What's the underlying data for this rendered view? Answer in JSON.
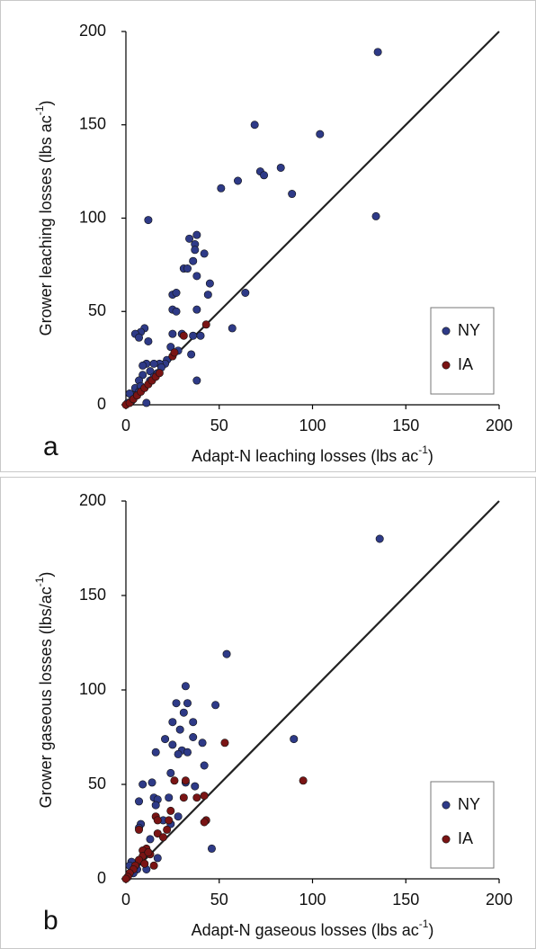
{
  "chart_data": [
    {
      "type": "scatter",
      "panel_label": "a",
      "x_label": "Adapt-N leaching losses (lbs ac",
      "x_label_sup": "-1",
      "x_label_end": ")",
      "y_label": "Grower  leaching losses (lbs ac",
      "y_label_sup": "-1",
      "y_label_end": ")",
      "xlim": [
        0,
        200
      ],
      "ylim": [
        0,
        200
      ],
      "xticks": [
        0,
        50,
        100,
        150,
        200
      ],
      "yticks": [
        0,
        50,
        100,
        150,
        200
      ],
      "legend": "lower right",
      "series": [
        {
          "name": "NY",
          "color": "#2e3a87",
          "x": [
            135,
            134,
            104,
            69,
            72,
            74,
            83,
            89,
            60,
            51,
            12,
            38,
            34,
            37,
            37,
            36,
            42,
            31,
            33,
            38,
            25,
            27,
            45,
            44,
            64,
            25,
            27,
            38,
            57,
            10,
            8,
            5,
            7,
            25,
            30,
            36,
            40,
            35,
            28,
            24,
            12,
            22,
            21,
            18,
            15,
            11,
            9,
            13,
            9,
            7,
            5,
            7,
            4,
            2,
            11,
            38,
            13,
            15,
            17,
            19,
            8,
            3,
            1
          ],
          "values": [
            189,
            101,
            145,
            150,
            125,
            123,
            127,
            113,
            120,
            116,
            99,
            91,
            89,
            86,
            83,
            77,
            81,
            73,
            73,
            69,
            59,
            60,
            65,
            59,
            60,
            51,
            50,
            51,
            41,
            41,
            39,
            38,
            36,
            38,
            38,
            37,
            37,
            27,
            29,
            31,
            34,
            24,
            22,
            22,
            22,
            22,
            21,
            18,
            16,
            13,
            9,
            7,
            5,
            6,
            1,
            13,
            13,
            15,
            17,
            20,
            10,
            2,
            1
          ]
        },
        {
          "name": "IA",
          "color": "#7a1414",
          "x": [
            0,
            2,
            4,
            6,
            8,
            10,
            12,
            14,
            16,
            18,
            25,
            26,
            31,
            43
          ],
          "values": [
            0,
            1,
            3,
            5,
            7,
            9,
            11,
            13,
            15,
            17,
            26,
            28,
            37,
            43
          ]
        }
      ]
    },
    {
      "type": "scatter",
      "panel_label": "b",
      "x_label": "Adapt-N gaseous losses (lbs ac",
      "x_label_sup": "-1",
      "x_label_end": ")",
      "y_label": "Grower  gaseous losses (lbs/ac",
      "y_label_sup": "-1",
      "y_label_end": ")",
      "xlim": [
        0,
        200
      ],
      "ylim": [
        0,
        200
      ],
      "xticks": [
        0,
        50,
        100,
        150,
        200
      ],
      "yticks": [
        0,
        50,
        100,
        150,
        200
      ],
      "legend": "lower right",
      "series": [
        {
          "name": "NY",
          "color": "#2e3a87",
          "x": [
            136,
            54,
            32,
            27,
            33,
            48,
            31,
            25,
            36,
            29,
            21,
            36,
            25,
            30,
            41,
            28,
            16,
            33,
            24,
            42,
            32,
            14,
            9,
            15,
            17,
            23,
            7,
            37,
            28,
            24,
            90,
            46,
            8,
            7,
            16,
            13,
            17,
            3,
            2,
            6,
            11,
            4,
            1,
            20
          ],
          "values": [
            180,
            119,
            102,
            93,
            93,
            92,
            88,
            83,
            83,
            79,
            74,
            75,
            71,
            68,
            72,
            66,
            67,
            67,
            56,
            60,
            51,
            51,
            50,
            43,
            42,
            43,
            41,
            49,
            33,
            29,
            74,
            16,
            29,
            27,
            39,
            21,
            11,
            9,
            7,
            5,
            5,
            3,
            1,
            31
          ]
        },
        {
          "name": "IA",
          "color": "#7a1414",
          "x": [
            53,
            95,
            32,
            26,
            42,
            31,
            38,
            43,
            42,
            24,
            23,
            16,
            17,
            7,
            22,
            17,
            11,
            9,
            13,
            9,
            7,
            5,
            4,
            2,
            1,
            0,
            15,
            10,
            12,
            20
          ],
          "values": [
            72,
            52,
            52,
            52,
            44,
            43,
            43,
            31,
            30,
            36,
            31,
            33,
            31,
            26,
            26,
            24,
            16,
            15,
            13,
            12,
            10,
            7,
            5,
            3,
            1,
            0,
            7,
            8,
            14,
            22
          ]
        }
      ]
    }
  ]
}
